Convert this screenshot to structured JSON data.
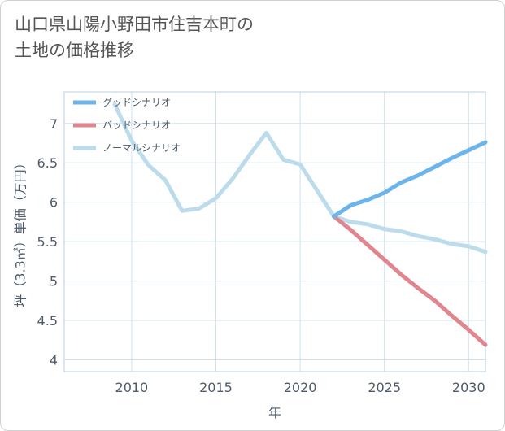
{
  "title": "山口県山陽小野田市住吉本町の\n土地の価格推移",
  "chart_data": {
    "type": "line",
    "xlabel": "年",
    "ylabel": "坪（3.3㎡）単価（万円）",
    "xlim": [
      2006,
      2031
    ],
    "ylim": [
      3.85,
      7.4
    ],
    "xticks": [
      2010,
      2015,
      2020,
      2025,
      2030
    ],
    "yticks": [
      4,
      4.5,
      5,
      5.5,
      6,
      6.5,
      7
    ],
    "ytick_labels": [
      "4",
      "4.5",
      "5",
      "5.5",
      "6",
      "6.5",
      "7"
    ],
    "grid": true,
    "legend_position": "top-left",
    "series": [
      {
        "name": "グッドシナリオ",
        "color": "#6cb4ea",
        "x": [
          2022,
          2023,
          2024,
          2025,
          2026,
          2027,
          2028,
          2029,
          2030,
          2031
        ],
        "y": [
          5.82,
          5.96,
          6.03,
          6.12,
          6.25,
          6.34,
          6.45,
          6.56,
          6.66,
          6.76
        ]
      },
      {
        "name": "バッドシナリオ",
        "color": "#e0868f",
        "x": [
          2022,
          2023,
          2024,
          2025,
          2026,
          2027,
          2028,
          2029,
          2030,
          2031
        ],
        "y": [
          5.82,
          5.65,
          5.46,
          5.27,
          5.08,
          4.91,
          4.75,
          4.56,
          4.38,
          4.19
        ]
      },
      {
        "name": "ノーマルシナリオ",
        "color": "#bcdcec",
        "x": [
          2009,
          2010,
          2011,
          2012,
          2013,
          2014,
          2015,
          2016,
          2017,
          2018,
          2019,
          2020,
          2021,
          2022,
          2023,
          2024,
          2025,
          2026,
          2027,
          2028,
          2029,
          2030,
          2031
        ],
        "y": [
          7.24,
          6.78,
          6.47,
          6.28,
          5.89,
          5.92,
          6.05,
          6.3,
          6.6,
          6.88,
          6.54,
          6.48,
          6.15,
          5.82,
          5.75,
          5.72,
          5.66,
          5.63,
          5.57,
          5.53,
          5.47,
          5.44,
          5.37
        ]
      }
    ]
  }
}
